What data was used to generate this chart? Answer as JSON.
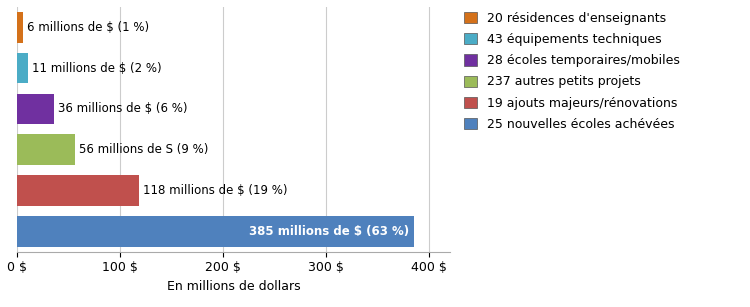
{
  "categories": [
    "20 résidences d'enseignants",
    "43 équipements techniques",
    "28 écoles temporaires/mobiles",
    "237 autres petits projets",
    "19 ajouts majeurs/rénovations",
    "25 nouvelles écoles achévées"
  ],
  "values": [
    385,
    118,
    56,
    36,
    11,
    6
  ],
  "labels": [
    "385 millions de $ (63 %)",
    "118 millions de $ (19 %)",
    "56 millions de S (9 %)",
    "36 millions de $ (6 %)",
    "11 millions de $ (2 %)",
    "6 millions de $ (1 %)"
  ],
  "label_inside": [
    true,
    false,
    false,
    false,
    false,
    false
  ],
  "colors": [
    "#4F81BD",
    "#C0504D",
    "#9BBB59",
    "#7030A0",
    "#4BACC6",
    "#D4711A"
  ],
  "legend_categories": [
    "20 résidences d'enseignants",
    "43 équipements techniques",
    "28 écoles temporaires/mobiles",
    "237 autres petits projets",
    "19 ajouts majeurs/rénovations",
    "25 nouvelles écoles achévées"
  ],
  "legend_colors": [
    "#D4711A",
    "#4BACC6",
    "#7030A0",
    "#9BBB59",
    "#C0504D",
    "#4F81BD"
  ],
  "xlabel": "En millions de dollars",
  "xlim": [
    0,
    420
  ],
  "xticks": [
    0,
    100,
    200,
    300,
    400
  ],
  "xticklabels": [
    "0 $",
    "100 $",
    "200 $",
    "300 $",
    "400 $"
  ],
  "background_color": "#FFFFFF",
  "bar_height": 0.75,
  "label_fontsize": 8.5,
  "legend_fontsize": 9,
  "xlabel_fontsize": 9
}
